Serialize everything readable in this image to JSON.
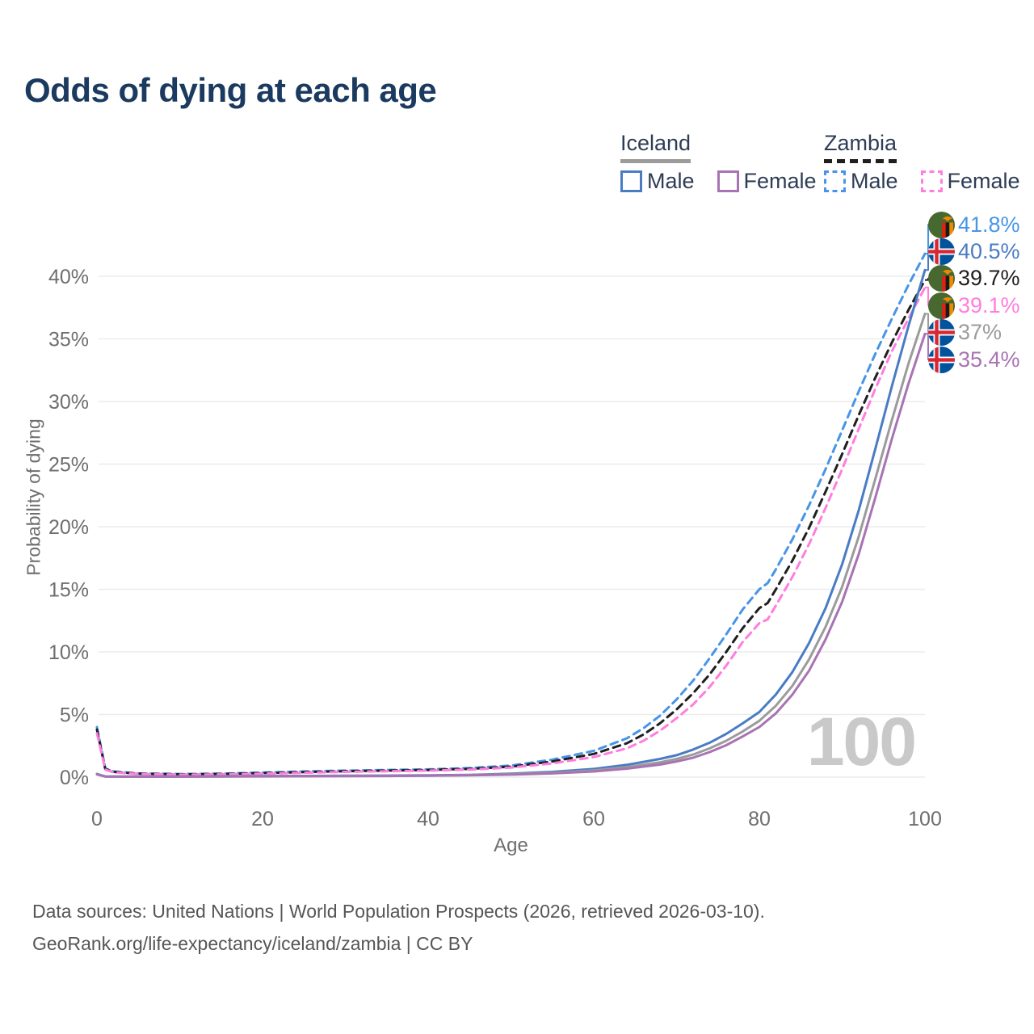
{
  "title": "Odds of dying at each age",
  "legend": {
    "groups": [
      {
        "label": "Iceland",
        "line_style": "solid",
        "underline_color": "#9b9b9b",
        "items": [
          {
            "label": "Male",
            "color": "#4a7cc4"
          },
          {
            "label": "Female",
            "color": "#a873b3"
          }
        ]
      },
      {
        "label": "Zambia",
        "line_style": "dashed",
        "underline_color": "#1f1f1f",
        "items": [
          {
            "label": "Male",
            "color": "#4695e8"
          },
          {
            "label": "Female",
            "color": "#ff7ddf"
          }
        ]
      }
    ]
  },
  "watermark": "100",
  "footer": {
    "line1": "Data sources: United Nations | World Population Prospects (2026, retrieved 2026-03-10).",
    "line2": "GeoRank.org/life-expectancy/iceland/zambia | CC BY"
  },
  "chart_data": {
    "type": "line",
    "title": "Odds of dying at each age",
    "xlabel": "Age",
    "ylabel": "Probability of dying",
    "unit": "percent",
    "xlim": [
      0,
      100
    ],
    "ylim_percent": [
      0,
      44
    ],
    "xticks": [
      0,
      20,
      40,
      60,
      80,
      100
    ],
    "ytick_percent_step": 5,
    "yticks": [
      "0%",
      "5%",
      "10%",
      "15%",
      "20%",
      "25%",
      "30%",
      "35%",
      "40%"
    ],
    "grid": "horizontal",
    "legend_position": "top-right",
    "series": [
      {
        "name": "Zambia Male",
        "country": "Zambia",
        "sex": "Male",
        "color": "#4695e8",
        "dash": true,
        "points": [
          [
            0,
            4.0
          ],
          [
            1,
            0.7
          ],
          [
            2,
            0.45
          ],
          [
            5,
            0.3
          ],
          [
            10,
            0.25
          ],
          [
            15,
            0.28
          ],
          [
            20,
            0.36
          ],
          [
            25,
            0.45
          ],
          [
            30,
            0.52
          ],
          [
            35,
            0.57
          ],
          [
            40,
            0.62
          ],
          [
            45,
            0.72
          ],
          [
            50,
            0.92
          ],
          [
            55,
            1.4
          ],
          [
            60,
            2.1
          ],
          [
            64,
            3.1
          ],
          [
            66,
            3.9
          ],
          [
            68,
            4.9
          ],
          [
            70,
            6.2
          ],
          [
            72,
            7.7
          ],
          [
            74,
            9.5
          ],
          [
            76,
            11.4
          ],
          [
            78,
            13.4
          ],
          [
            80,
            15.0
          ],
          [
            81,
            15.5
          ],
          [
            82,
            16.6
          ],
          [
            84,
            19.0
          ],
          [
            86,
            21.7
          ],
          [
            88,
            24.6
          ],
          [
            90,
            27.7
          ],
          [
            92,
            30.8
          ],
          [
            94,
            33.8
          ],
          [
            96,
            36.6
          ],
          [
            98,
            39.3
          ],
          [
            100,
            41.8
          ]
        ]
      },
      {
        "name": "Zambia Total",
        "country": "Zambia",
        "sex": "Both",
        "color": "#1f1f1f",
        "dash": true,
        "points": [
          [
            0,
            3.8
          ],
          [
            1,
            0.65
          ],
          [
            2,
            0.42
          ],
          [
            5,
            0.28
          ],
          [
            10,
            0.22
          ],
          [
            15,
            0.25
          ],
          [
            20,
            0.32
          ],
          [
            25,
            0.4
          ],
          [
            30,
            0.47
          ],
          [
            35,
            0.52
          ],
          [
            40,
            0.57
          ],
          [
            45,
            0.66
          ],
          [
            50,
            0.83
          ],
          [
            55,
            1.25
          ],
          [
            60,
            1.85
          ],
          [
            64,
            2.7
          ],
          [
            66,
            3.4
          ],
          [
            68,
            4.3
          ],
          [
            70,
            5.4
          ],
          [
            72,
            6.7
          ],
          [
            74,
            8.2
          ],
          [
            76,
            10.0
          ],
          [
            78,
            11.9
          ],
          [
            80,
            13.5
          ],
          [
            81,
            13.9
          ],
          [
            82,
            15.0
          ],
          [
            84,
            17.3
          ],
          [
            86,
            19.9
          ],
          [
            88,
            22.8
          ],
          [
            90,
            25.8
          ],
          [
            92,
            28.9
          ],
          [
            94,
            31.9
          ],
          [
            96,
            34.7
          ],
          [
            98,
            37.3
          ],
          [
            100,
            39.7
          ]
        ]
      },
      {
        "name": "Zambia Female",
        "country": "Zambia",
        "sex": "Female",
        "color": "#ff7ddf",
        "dash": true,
        "points": [
          [
            0,
            3.5
          ],
          [
            1,
            0.6
          ],
          [
            2,
            0.38
          ],
          [
            5,
            0.25
          ],
          [
            10,
            0.2
          ],
          [
            15,
            0.22
          ],
          [
            20,
            0.28
          ],
          [
            25,
            0.35
          ],
          [
            30,
            0.42
          ],
          [
            35,
            0.47
          ],
          [
            40,
            0.52
          ],
          [
            45,
            0.6
          ],
          [
            50,
            0.76
          ],
          [
            55,
            1.1
          ],
          [
            60,
            1.6
          ],
          [
            64,
            2.3
          ],
          [
            66,
            2.9
          ],
          [
            68,
            3.7
          ],
          [
            70,
            4.7
          ],
          [
            72,
            5.8
          ],
          [
            74,
            7.2
          ],
          [
            76,
            8.9
          ],
          [
            78,
            10.8
          ],
          [
            80,
            12.3
          ],
          [
            81,
            12.6
          ],
          [
            82,
            13.7
          ],
          [
            84,
            16.0
          ],
          [
            86,
            18.6
          ],
          [
            88,
            21.5
          ],
          [
            90,
            24.6
          ],
          [
            92,
            27.8
          ],
          [
            94,
            31.0
          ],
          [
            96,
            34.0
          ],
          [
            98,
            36.6
          ],
          [
            100,
            39.1
          ]
        ]
      },
      {
        "name": "Iceland Male",
        "country": "Iceland",
        "sex": "Male",
        "color": "#4a7cc4",
        "dash": false,
        "points": [
          [
            0,
            0.26
          ],
          [
            1,
            0.06
          ],
          [
            5,
            0.05
          ],
          [
            10,
            0.05
          ],
          [
            15,
            0.07
          ],
          [
            20,
            0.09
          ],
          [
            25,
            0.1
          ],
          [
            30,
            0.11
          ],
          [
            35,
            0.12
          ],
          [
            40,
            0.14
          ],
          [
            45,
            0.18
          ],
          [
            50,
            0.27
          ],
          [
            55,
            0.42
          ],
          [
            60,
            0.65
          ],
          [
            64,
            0.98
          ],
          [
            68,
            1.45
          ],
          [
            70,
            1.75
          ],
          [
            72,
            2.2
          ],
          [
            74,
            2.75
          ],
          [
            76,
            3.45
          ],
          [
            78,
            4.3
          ],
          [
            80,
            5.2
          ],
          [
            82,
            6.6
          ],
          [
            84,
            8.4
          ],
          [
            86,
            10.7
          ],
          [
            88,
            13.5
          ],
          [
            90,
            17.0
          ],
          [
            92,
            21.3
          ],
          [
            94,
            26.2
          ],
          [
            96,
            31.2
          ],
          [
            98,
            36.0
          ],
          [
            100,
            40.5
          ]
        ]
      },
      {
        "name": "Iceland Total",
        "country": "Iceland",
        "sex": "Both",
        "color": "#9b9b9b",
        "dash": false,
        "points": [
          [
            0,
            0.23
          ],
          [
            1,
            0.05
          ],
          [
            5,
            0.04
          ],
          [
            10,
            0.04
          ],
          [
            15,
            0.06
          ],
          [
            20,
            0.07
          ],
          [
            25,
            0.08
          ],
          [
            30,
            0.09
          ],
          [
            35,
            0.1
          ],
          [
            40,
            0.12
          ],
          [
            45,
            0.16
          ],
          [
            50,
            0.23
          ],
          [
            55,
            0.35
          ],
          [
            60,
            0.53
          ],
          [
            64,
            0.8
          ],
          [
            68,
            1.18
          ],
          [
            70,
            1.45
          ],
          [
            72,
            1.8
          ],
          [
            74,
            2.3
          ],
          [
            76,
            2.9
          ],
          [
            78,
            3.65
          ],
          [
            80,
            4.5
          ],
          [
            82,
            5.7
          ],
          [
            84,
            7.3
          ],
          [
            86,
            9.4
          ],
          [
            88,
            12.0
          ],
          [
            90,
            15.2
          ],
          [
            92,
            19.2
          ],
          [
            94,
            23.8
          ],
          [
            96,
            28.5
          ],
          [
            98,
            33.0
          ],
          [
            100,
            37.0
          ]
        ]
      },
      {
        "name": "Iceland Female",
        "country": "Iceland",
        "sex": "Female",
        "color": "#a873b3",
        "dash": false,
        "points": [
          [
            0,
            0.21
          ],
          [
            1,
            0.05
          ],
          [
            5,
            0.04
          ],
          [
            10,
            0.04
          ],
          [
            15,
            0.05
          ],
          [
            20,
            0.06
          ],
          [
            25,
            0.07
          ],
          [
            30,
            0.08
          ],
          [
            35,
            0.09
          ],
          [
            40,
            0.11
          ],
          [
            45,
            0.14
          ],
          [
            50,
            0.2
          ],
          [
            55,
            0.3
          ],
          [
            60,
            0.45
          ],
          [
            64,
            0.68
          ],
          [
            68,
            1.0
          ],
          [
            70,
            1.25
          ],
          [
            72,
            1.55
          ],
          [
            74,
            2.0
          ],
          [
            76,
            2.55
          ],
          [
            78,
            3.25
          ],
          [
            80,
            4.0
          ],
          [
            82,
            5.1
          ],
          [
            84,
            6.6
          ],
          [
            86,
            8.5
          ],
          [
            88,
            11.0
          ],
          [
            90,
            14.0
          ],
          [
            92,
            17.8
          ],
          [
            94,
            22.3
          ],
          [
            96,
            27.0
          ],
          [
            98,
            31.4
          ],
          [
            100,
            35.4
          ]
        ]
      }
    ],
    "end_labels": [
      {
        "label": "41.8%",
        "pct": 41.8,
        "color": "#4695e8",
        "flag": "zambia",
        "series": "Zambia Male"
      },
      {
        "label": "40.5%",
        "pct": 40.5,
        "color": "#4a7cc4",
        "flag": "iceland",
        "series": "Iceland Male"
      },
      {
        "label": "39.7%",
        "pct": 39.7,
        "color": "#1f1f1f",
        "flag": "zambia",
        "series": "Zambia Total"
      },
      {
        "label": "39.1%",
        "pct": 39.1,
        "color": "#ff7ddf",
        "flag": "zambia",
        "series": "Zambia Female"
      },
      {
        "label": "37%",
        "pct": 37.0,
        "color": "#9b9b9b",
        "flag": "iceland",
        "series": "Iceland Total"
      },
      {
        "label": "35.4%",
        "pct": 35.4,
        "color": "#a873b3",
        "flag": "iceland",
        "series": "Iceland Female"
      }
    ]
  }
}
